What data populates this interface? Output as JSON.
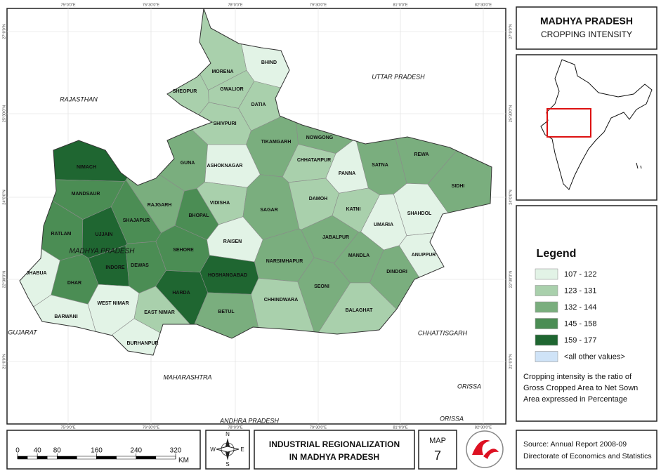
{
  "header": {
    "title": "MADHYA PRADESH",
    "subtitle": "CROPPING INTENSITY"
  },
  "legend": {
    "title": "Legend",
    "classes": [
      {
        "label": "107 - 122",
        "color": "#e2f3e6"
      },
      {
        "label": "123 - 131",
        "color": "#a9d0ac"
      },
      {
        "label": "132 - 144",
        "color": "#7aae7e"
      },
      {
        "label": "145 - 158",
        "color": "#4b8d54"
      },
      {
        "label": "159 - 177",
        "color": "#1f6631"
      },
      {
        "label": "<all other values>",
        "color": "#cfe3f7"
      }
    ],
    "note": [
      "Cropping intensity is the ratio of",
      "Gross Cropped Area to Net Sown",
      "Area expressed in Percentage"
    ]
  },
  "map": {
    "state_label": "MADHYA PRADESH",
    "districts": [
      {
        "name": "BHIND",
        "class": 0
      },
      {
        "name": "MORENA",
        "class": 1
      },
      {
        "name": "GWALIOR",
        "class": 1
      },
      {
        "name": "SHEOPUR",
        "class": 1
      },
      {
        "name": "DATIA",
        "class": 1
      },
      {
        "name": "SHIVPURI",
        "class": 1
      },
      {
        "name": "TIKAMGARH",
        "class": 2
      },
      {
        "name": "NOWGONG",
        "class": 2
      },
      {
        "name": "CHHATARPUR",
        "class": 1
      },
      {
        "name": "PANNA",
        "class": 0
      },
      {
        "name": "SATNA",
        "class": 2
      },
      {
        "name": "REWA",
        "class": 2
      },
      {
        "name": "SIDHI",
        "class": 2
      },
      {
        "name": "GUNA",
        "class": 2
      },
      {
        "name": "ASHOKNAGAR",
        "class": 0
      },
      {
        "name": "NIMACH",
        "class": 4
      },
      {
        "name": "MANDSAUR",
        "class": 3
      },
      {
        "name": "RAJGARH",
        "class": 2
      },
      {
        "name": "SHAJAPUR",
        "class": 3
      },
      {
        "name": "BHOPAL",
        "class": 3
      },
      {
        "name": "VIDISHA",
        "class": 1
      },
      {
        "name": "SAGAR",
        "class": 2
      },
      {
        "name": "DAMOH",
        "class": 1
      },
      {
        "name": "KATNI",
        "class": 1
      },
      {
        "name": "UMARIA",
        "class": 0
      },
      {
        "name": "SHAHDOL",
        "class": 0
      },
      {
        "name": "RATLAM",
        "class": 3
      },
      {
        "name": "UJJAIN",
        "class": 4
      },
      {
        "name": "SEHORE",
        "class": 3
      },
      {
        "name": "RAISEN",
        "class": 0
      },
      {
        "name": "JABALPUR",
        "class": 2
      },
      {
        "name": "ANUPPUR",
        "class": 0
      },
      {
        "name": "JHABUA",
        "class": 0
      },
      {
        "name": "DHAR",
        "class": 3
      },
      {
        "name": "INDORE",
        "class": 4
      },
      {
        "name": "DEWAS",
        "class": 3
      },
      {
        "name": "NARSIMHAPUR",
        "class": 2
      },
      {
        "name": "MANDLA",
        "class": 2
      },
      {
        "name": "DINDORI",
        "class": 2
      },
      {
        "name": "HOSHANGABAD",
        "class": 4
      },
      {
        "name": "HARDA",
        "class": 4
      },
      {
        "name": "SEONI",
        "class": 2
      },
      {
        "name": "WEST NIMAR",
        "class": 0
      },
      {
        "name": "BARWANI",
        "class": 0
      },
      {
        "name": "EAST NIMAR",
        "class": 1
      },
      {
        "name": "BETUL",
        "class": 2
      },
      {
        "name": "CHHINDWARA",
        "class": 1
      },
      {
        "name": "BALAGHAT",
        "class": 1
      },
      {
        "name": "BURHANPUR",
        "class": 0
      }
    ],
    "neighbours": [
      "RAJASTHAN",
      "UTTAR PRADESH",
      "GUJARAT",
      "MAHARASHTRA",
      "CHHATTISGARH",
      "ORISSA",
      "ANDHRA PRADESH",
      "ORISSA"
    ],
    "lon_ticks": [
      "75°0'0\"E",
      "76°30'0\"E",
      "78°0'0\"E",
      "79°30'0\"E",
      "81°0'0\"E",
      "82°30'0\"E"
    ],
    "lat_ticks": [
      "27°0'0\"N",
      "25°30'0\"N",
      "24°0'0\"N",
      "22°30'0\"N",
      "21°0'0\"N"
    ]
  },
  "scale": {
    "ticks": [
      0,
      40,
      80,
      160,
      240,
      320
    ],
    "unit": "KM"
  },
  "compass": {
    "n": "N",
    "s": "S",
    "e": "E",
    "w": "W"
  },
  "footer": {
    "title": [
      "INDUSTRIAL REGIONALIZATION",
      "IN MADHYA PRADESH"
    ],
    "map_label": "MAP",
    "map_number": "7",
    "source": [
      "Source: Annual Report 2008-09",
      "Directorate of Economics and Statistics"
    ]
  }
}
